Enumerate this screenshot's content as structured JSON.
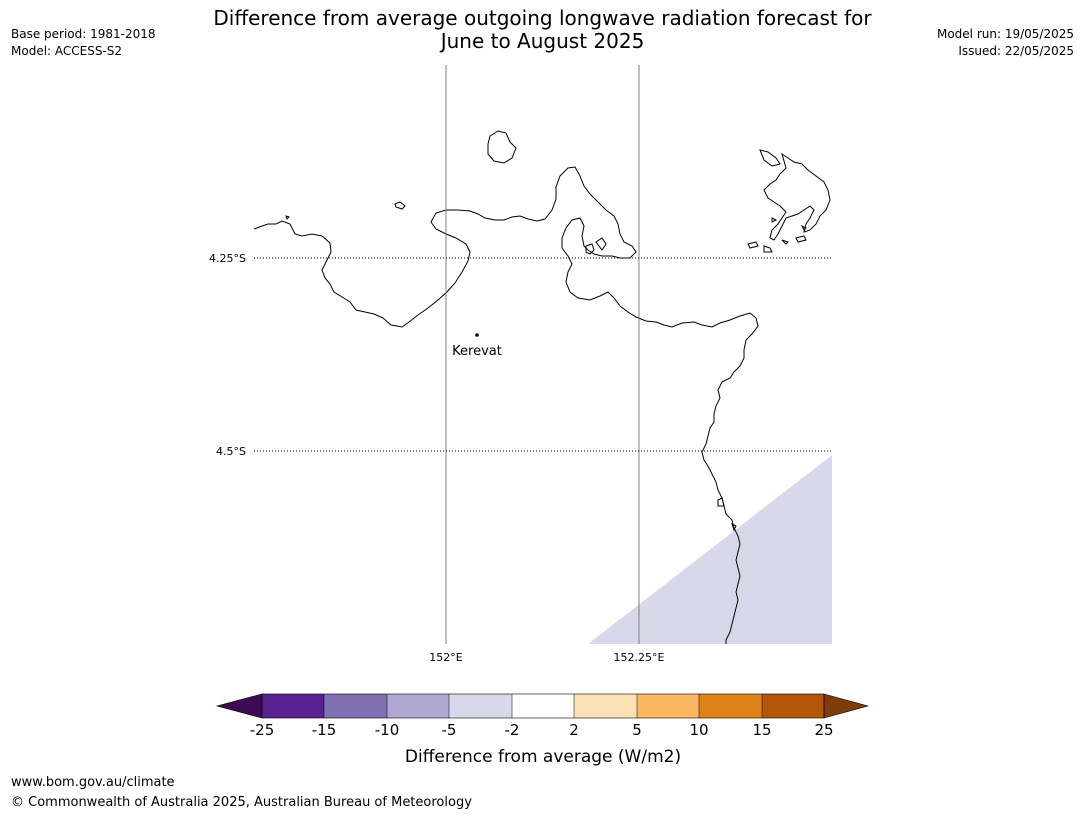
{
  "header": {
    "title_line1": "Difference from average outgoing longwave radiation forecast for",
    "title_line2": "June to August 2025",
    "base_period": "Base period: 1981-2018",
    "model": "Model: ACCESS-S2",
    "model_run": "Model run: 19/05/2025",
    "issued": "Issued: 22/05/2025"
  },
  "map": {
    "latitude_labels": [
      "4.25°S",
      "4.5°S"
    ],
    "longitude_labels": [
      "152°E",
      "152.25°E"
    ],
    "place": "Kerevat",
    "land_color": "#ffffff",
    "coastline_color": "#000000",
    "anomaly_fill_color": "#d8d8ea",
    "anomaly_fill_category": "-5 to -2"
  },
  "colorbar": {
    "title": "Difference from average (W/m2)",
    "ticks": [
      "-25",
      "-15",
      "-10",
      "-5",
      "-2",
      "2",
      "5",
      "10",
      "15",
      "25"
    ],
    "colors": [
      "#3f0a54",
      "#57218f",
      "#8170b1",
      "#b0a8d3",
      "#d8d8ea",
      "#ffffff",
      "#fde0b5",
      "#fbb661",
      "#e0821a",
      "#b45608",
      "#7f3b08"
    ]
  },
  "footer": {
    "url": "www.bom.gov.au/climate",
    "copyright": "© Commonwealth of Australia 2025, Australian Bureau of Meteorology"
  }
}
